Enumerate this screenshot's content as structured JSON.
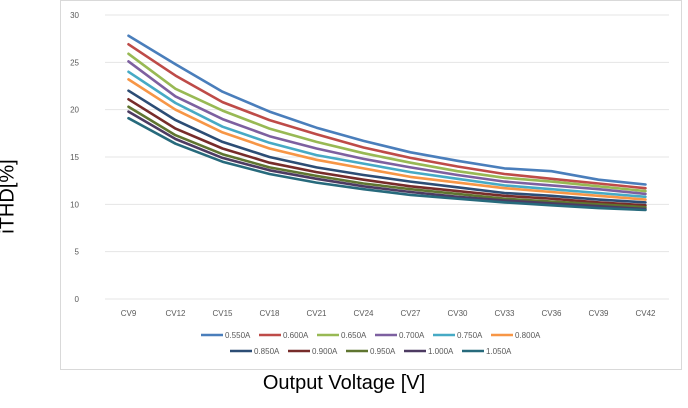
{
  "chart_data": {
    "type": "line",
    "title": "",
    "xlabel": "Output Voltage [V]",
    "ylabel": "iTHD[%]",
    "ylim": [
      0,
      30
    ],
    "yticks": [
      "0",
      "5",
      "10",
      "15",
      "20",
      "25",
      "30"
    ],
    "grid": "horizontal",
    "legend_position": "bottom",
    "categories": [
      "CV9",
      "CV12",
      "CV15",
      "CV18",
      "CV21",
      "CV24",
      "CV27",
      "CV30",
      "CV33",
      "CV36",
      "CV39",
      "CV42"
    ],
    "series": [
      {
        "name": "0.550A",
        "color": "#4a7ebb",
        "values": [
          27.8,
          24.8,
          21.9,
          19.8,
          18.1,
          16.7,
          15.5,
          14.6,
          13.8,
          13.5,
          12.6,
          12.1
        ]
      },
      {
        "name": "0.600A",
        "color": "#be4b48",
        "values": [
          26.9,
          23.6,
          20.8,
          18.9,
          17.4,
          16.0,
          14.9,
          14.0,
          13.2,
          12.7,
          12.2,
          11.7
        ]
      },
      {
        "name": "0.650A",
        "color": "#98b954",
        "values": [
          25.9,
          22.2,
          19.9,
          18.0,
          16.6,
          15.4,
          14.4,
          13.5,
          12.8,
          12.4,
          11.9,
          11.4
        ]
      },
      {
        "name": "0.700A",
        "color": "#7d60a0",
        "values": [
          25.1,
          21.4,
          19.0,
          17.2,
          15.9,
          14.8,
          13.9,
          13.1,
          12.4,
          12.0,
          11.6,
          11.1
        ]
      },
      {
        "name": "0.750A",
        "color": "#46aac5",
        "values": [
          24.0,
          20.7,
          18.2,
          16.5,
          15.2,
          14.3,
          13.4,
          12.7,
          12.0,
          11.6,
          11.2,
          10.8
        ]
      },
      {
        "name": "0.800A",
        "color": "#f79646",
        "values": [
          23.2,
          20.0,
          17.6,
          15.9,
          14.7,
          13.8,
          12.9,
          12.3,
          11.7,
          11.3,
          10.9,
          10.5
        ]
      },
      {
        "name": "0.850A",
        "color": "#2c4d75",
        "values": [
          22.0,
          18.9,
          16.6,
          15.0,
          13.9,
          13.1,
          12.4,
          11.8,
          11.2,
          10.9,
          10.5,
          10.2
        ]
      },
      {
        "name": "0.900A",
        "color": "#772c2a",
        "values": [
          21.1,
          18.0,
          15.9,
          14.4,
          13.4,
          12.6,
          11.9,
          11.4,
          10.9,
          10.6,
          10.2,
          9.9
        ]
      },
      {
        "name": "0.950A",
        "color": "#5f7530",
        "values": [
          20.3,
          17.3,
          15.3,
          13.9,
          13.0,
          12.2,
          11.6,
          11.1,
          10.6,
          10.3,
          10.0,
          9.7
        ]
      },
      {
        "name": "1.000A",
        "color": "#4d3b62",
        "values": [
          19.8,
          16.9,
          14.9,
          13.6,
          12.7,
          11.9,
          11.3,
          10.8,
          10.4,
          10.1,
          9.8,
          9.5
        ]
      },
      {
        "name": "1.050A",
        "color": "#276a7c",
        "values": [
          19.1,
          16.4,
          14.5,
          13.2,
          12.3,
          11.6,
          11.0,
          10.6,
          10.2,
          9.9,
          9.6,
          9.4
        ]
      }
    ]
  }
}
